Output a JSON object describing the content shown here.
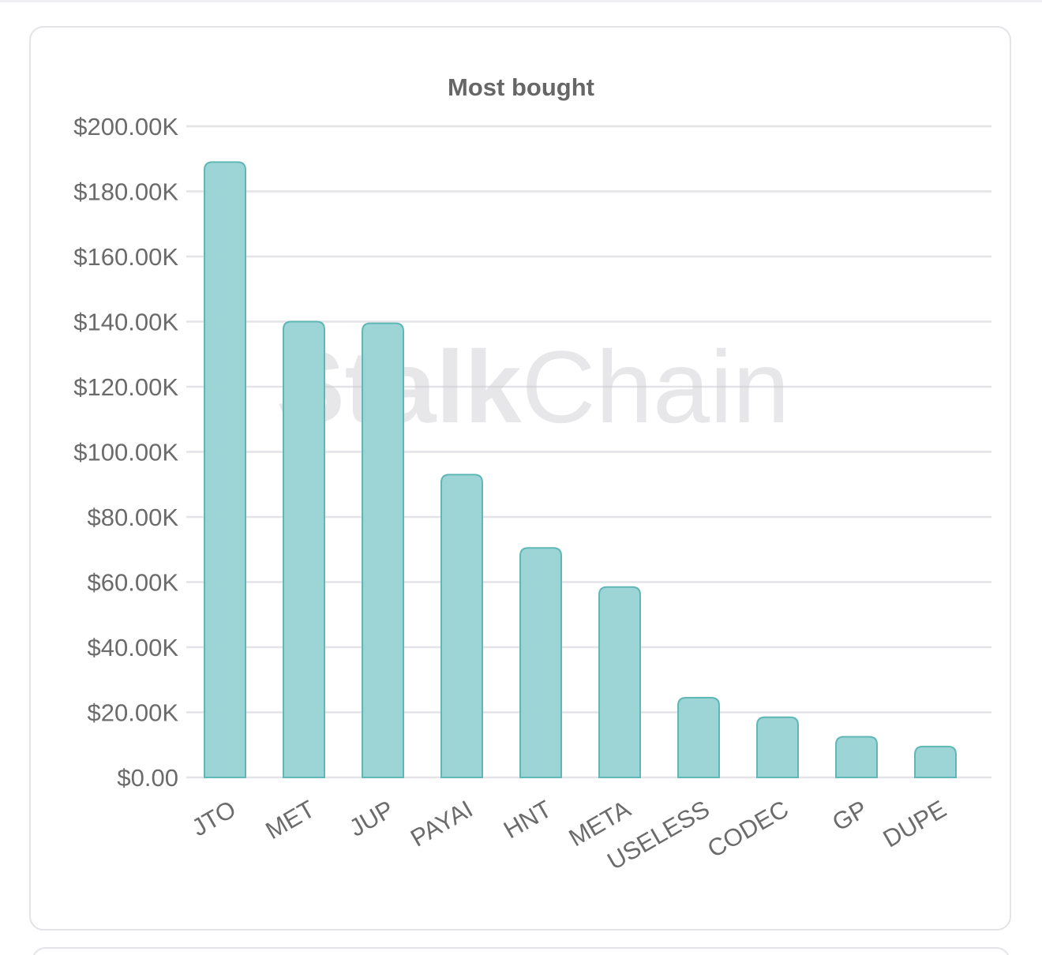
{
  "chart_data": {
    "type": "bar",
    "title": "Most bought",
    "categories": [
      "JTO",
      "MET",
      "JUP",
      "PAYAI",
      "HNT",
      "META",
      "USELESS",
      "CODEC",
      "GP",
      "DUPE"
    ],
    "values": [
      189000,
      140000,
      139500,
      93000,
      70500,
      58500,
      24500,
      18500,
      12500,
      9500
    ],
    "ylim": [
      0,
      200000
    ],
    "yticks": [
      0,
      20000,
      40000,
      60000,
      80000,
      100000,
      120000,
      140000,
      160000,
      180000,
      200000
    ],
    "ytick_labels": [
      "$0.00",
      "$20.00K",
      "$40.00K",
      "$60.00K",
      "$80.00K",
      "$100.00K",
      "$120.00K",
      "$140.00K",
      "$160.00K",
      "$180.00K",
      "$200.00K"
    ],
    "xlabel": "",
    "ylabel": "",
    "grid": true,
    "legend": "none",
    "bar_fill": "#9dd5d6",
    "bar_stroke": "#5fb7b6",
    "grid_color": "#e4e4e8",
    "text_color": "#6b6b6b"
  },
  "watermark": {
    "bold_part": "Stalk",
    "light_part": "Chain"
  }
}
